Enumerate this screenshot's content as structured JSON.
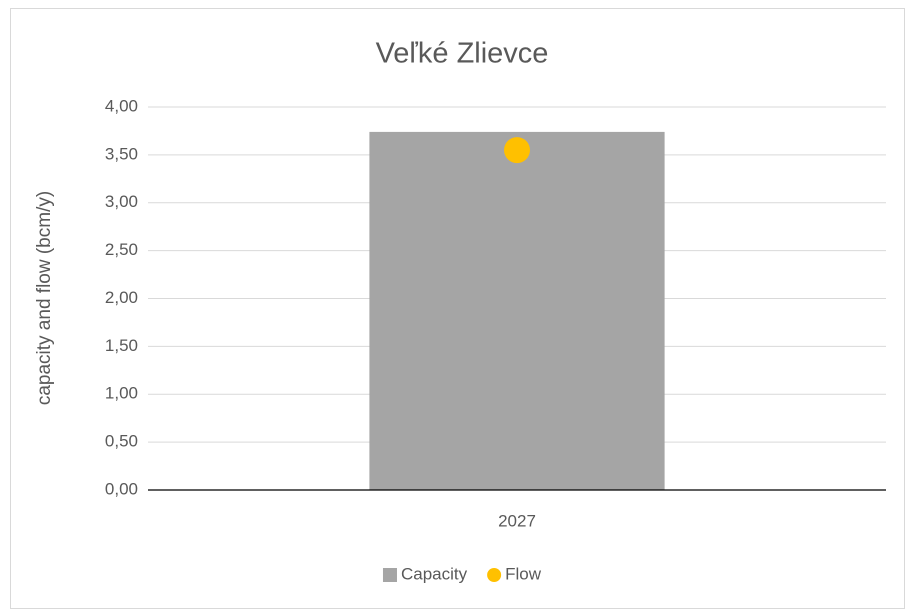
{
  "chart_data": {
    "type": "bar",
    "title": "Veľké Zlievce",
    "y_label": "capacity and flow (bcm/y)",
    "categories": [
      "2027"
    ],
    "series": [
      {
        "name": "Capacity",
        "color": "#a5a5a5",
        "type": "bar",
        "values": [
          3.74
        ]
      },
      {
        "name": "Flow",
        "color": "#ffc000",
        "type": "scatter",
        "values": [
          3.55
        ]
      }
    ],
    "ylim": [
      0,
      4
    ],
    "yticks": [
      {
        "value": 0,
        "label": "0,00"
      },
      {
        "value": 0.5,
        "label": "0,50"
      },
      {
        "value": 1,
        "label": "1,00"
      },
      {
        "value": 1.5,
        "label": "1,50"
      },
      {
        "value": 2,
        "label": "2,00"
      },
      {
        "value": 2.5,
        "label": "2,50"
      },
      {
        "value": 3,
        "label": "3,00"
      },
      {
        "value": 3.5,
        "label": "3,50"
      },
      {
        "value": 4,
        "label": "4,00"
      }
    ],
    "grid": true,
    "legend": "bottom"
  }
}
